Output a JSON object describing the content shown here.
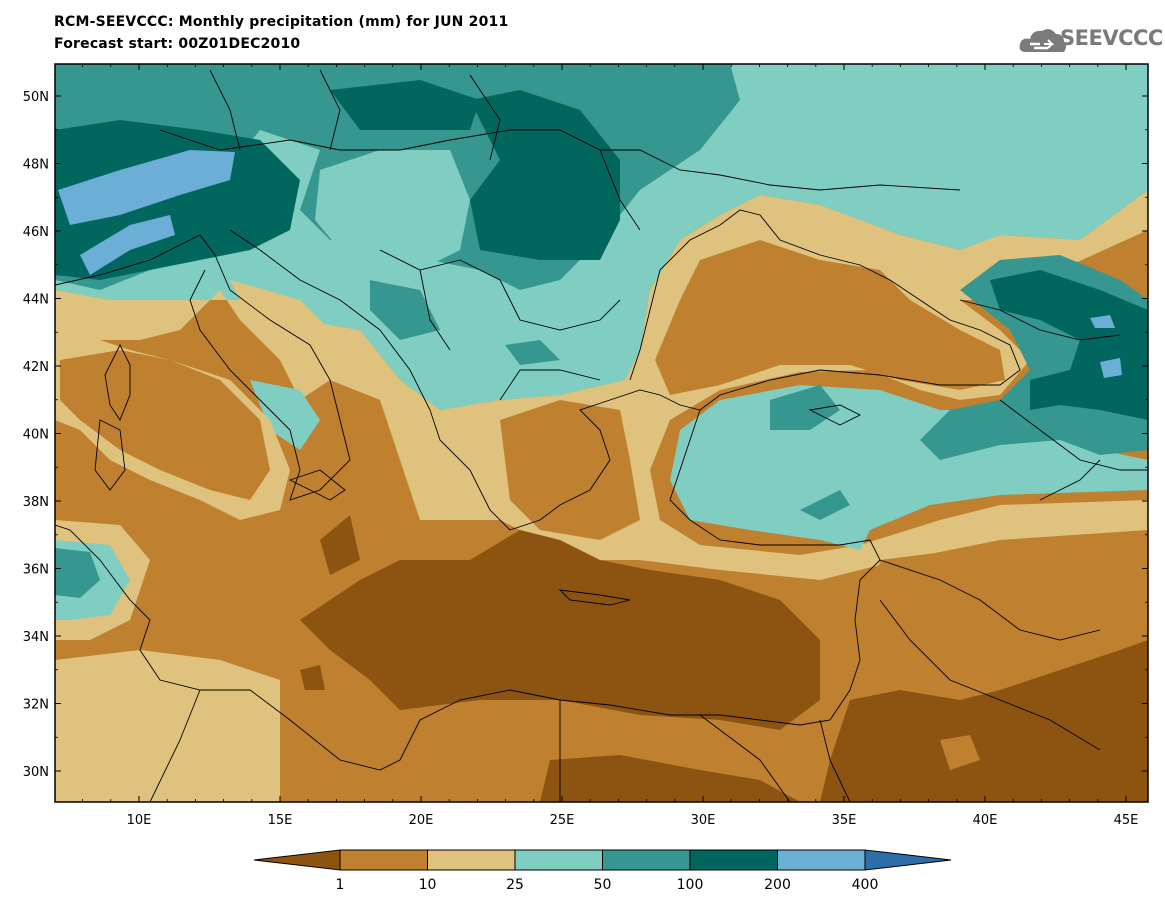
{
  "header": {
    "title_line1": "RCM-SEEVCCC: Monthly precipitation (mm) for JUN 2011",
    "title_line2": "Forecast start: 00Z01DEC2010",
    "logo_text": "SEEVCCC"
  },
  "colors": {
    "lt1": "#8c5410",
    "c1_10": "#bf8030",
    "c10_25": "#dfc27d",
    "c25_50": "#80cdc1",
    "c50_100": "#35978f",
    "c100_200": "#01665e",
    "c200_400": "#6baed6",
    "gt400": "#2c6fa8",
    "border": "#000000"
  },
  "map": {
    "lon_labels": [
      "10E",
      "15E",
      "20E",
      "25E",
      "30E",
      "35E",
      "40E",
      "45E"
    ],
    "lat_labels": [
      "50N",
      "48N",
      "46N",
      "44N",
      "42N",
      "40N",
      "38N",
      "36N",
      "34N",
      "32N",
      "30N"
    ]
  },
  "colorbar": {
    "labels": [
      "1",
      "10",
      "25",
      "50",
      "100",
      "200",
      "400"
    ]
  }
}
